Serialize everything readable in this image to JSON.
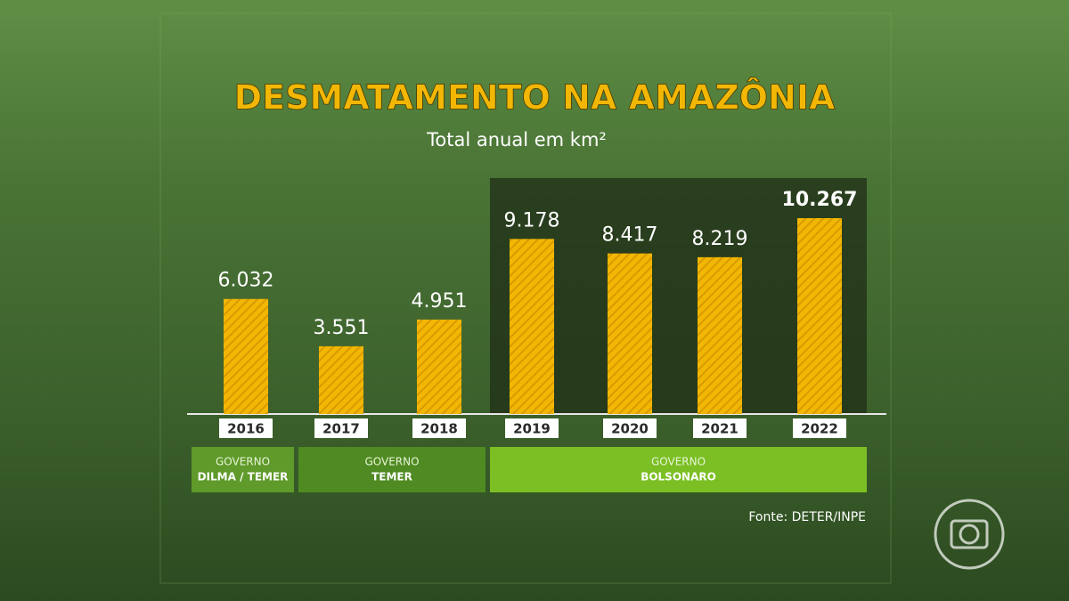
{
  "chart_data": {
    "type": "bar",
    "title": "DESMATAMENTO NA AMAZÔNIA",
    "subtitle": "Total anual em km²",
    "categories": [
      "2016",
      "2017",
      "2018",
      "2019",
      "2020",
      "2021",
      "2022"
    ],
    "values": [
      6032,
      3551,
      4951,
      9178,
      8417,
      8219,
      10267
    ],
    "value_labels": [
      "6.032",
      "3.551",
      "4.951",
      "9.178",
      "8.417",
      "8.219",
      "10.267"
    ],
    "color": "#f2b705",
    "groups": [
      {
        "label": "GOVERNO",
        "name": "DILMA / TEMER"
      },
      {
        "label": "GOVERNO",
        "name": "TEMER"
      },
      {
        "label": "GOVERNO",
        "name": "BOLSONARO"
      }
    ],
    "source": "Fonte: DETER/INPE"
  }
}
